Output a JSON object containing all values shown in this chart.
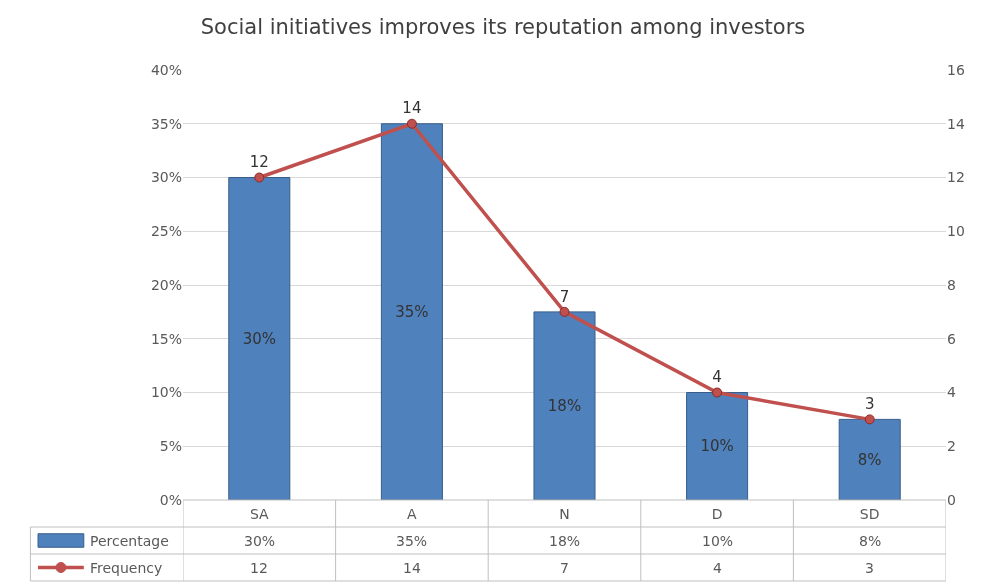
{
  "chart_data": {
    "type": "bar",
    "title": "Social initiatives improves its reputation among investors",
    "categories": [
      "SA",
      "A",
      "N",
      "D",
      "SD"
    ],
    "series": [
      {
        "name": "Percentage",
        "color": "#4f81bd",
        "values": [
          30,
          35,
          17.5,
          10,
          7.5
        ],
        "value_labels": [
          "30%",
          "35%",
          "18%",
          "10%",
          "8%"
        ]
      },
      {
        "name": "Frequency",
        "type": "line",
        "axis": "y2",
        "color": "#c0504d",
        "marker": "circle",
        "values": [
          12,
          14,
          7,
          4,
          3
        ],
        "value_labels": [
          "12",
          "14",
          "7",
          "4",
          "3"
        ]
      }
    ],
    "ylim": [
      0,
      40
    ],
    "yticks": [
      {
        "value": 0,
        "label": "0%"
      },
      {
        "value": 5,
        "label": "5%"
      },
      {
        "value": 10,
        "label": "10%"
      },
      {
        "value": 15,
        "label": "15%"
      },
      {
        "value": 20,
        "label": "20%"
      },
      {
        "value": 25,
        "label": "25%"
      },
      {
        "value": 30,
        "label": "30%"
      },
      {
        "value": 35,
        "label": "35%"
      },
      {
        "value": 40,
        "label": "40%"
      }
    ],
    "y2lim": [
      0,
      16
    ],
    "y2ticks": [
      0,
      2,
      4,
      6,
      8,
      10,
      12,
      14,
      16
    ],
    "grid": "y",
    "legend": "bottom"
  }
}
